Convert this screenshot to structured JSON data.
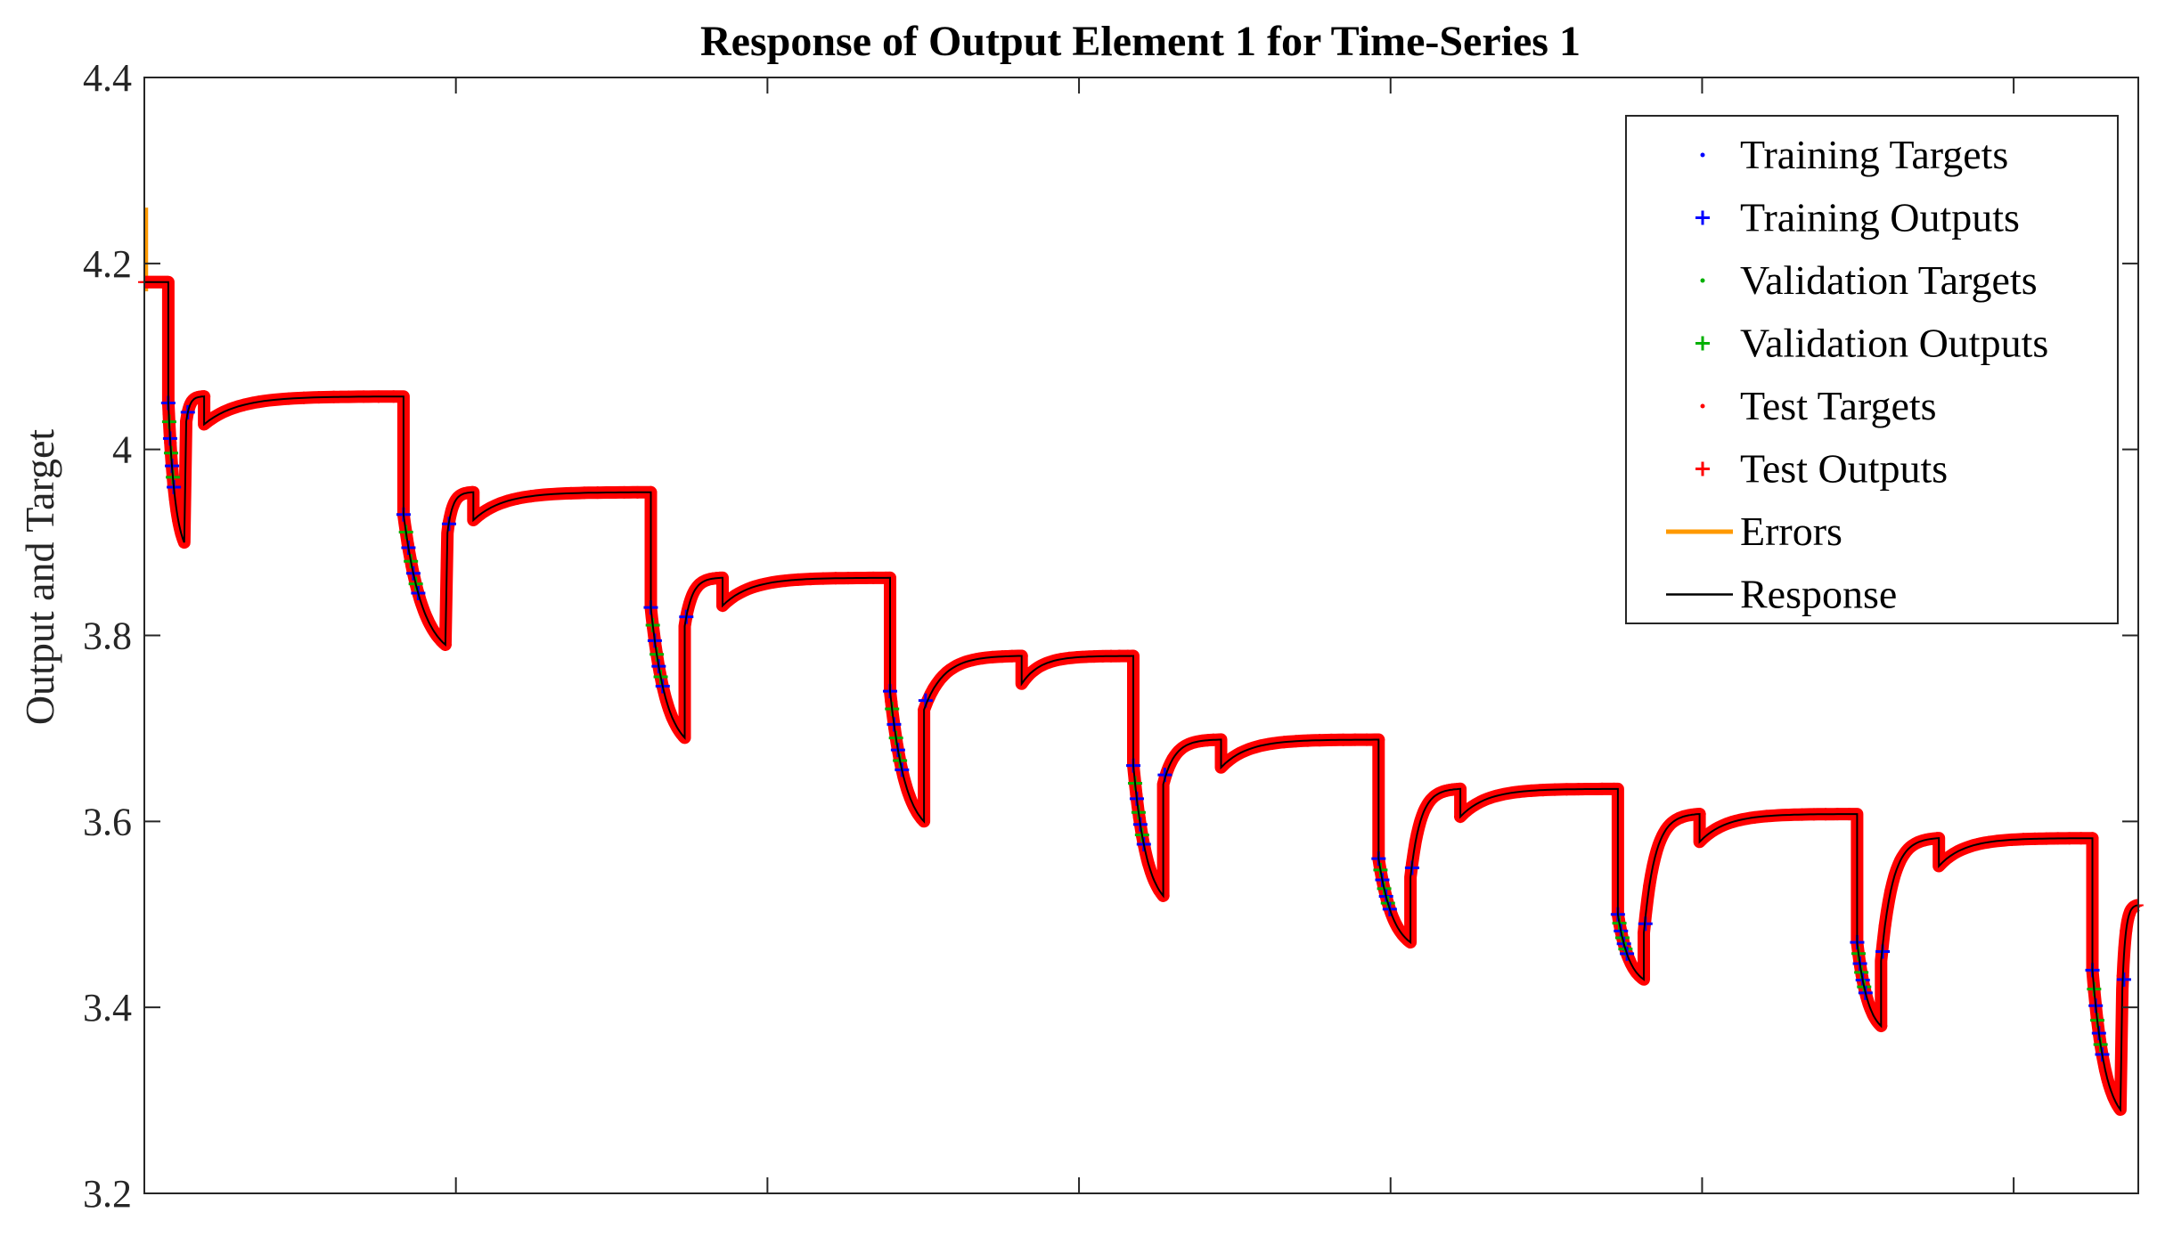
{
  "chart_data": {
    "type": "line",
    "title": "Response of Output Element 1 for Time-Series 1",
    "xlabel": "",
    "ylabel": "Output and Target",
    "ylim": [
      3.2,
      4.4
    ],
    "xlim": [
      0,
      1000
    ],
    "yticks": [
      "3.2",
      "3.4",
      "3.6",
      "3.8",
      "4",
      "4.2",
      "4.4"
    ],
    "ytick_values": [
      3.2,
      3.4,
      3.6,
      3.8,
      4.0,
      4.2,
      4.4
    ],
    "xticks_present": true,
    "grid": false,
    "legend_position": "top-right",
    "legend": [
      {
        "label": "Training Targets",
        "marker": "dot",
        "color": "#0000ff"
      },
      {
        "label": "Training Outputs",
        "marker": "plus",
        "color": "#0000ff"
      },
      {
        "label": "Validation Targets",
        "marker": "dot",
        "color": "#00b000"
      },
      {
        "label": "Validation Outputs",
        "marker": "plus",
        "color": "#00b000"
      },
      {
        "label": "Test Targets",
        "marker": "dot",
        "color": "#ff0000"
      },
      {
        "label": "Test Outputs",
        "marker": "plus",
        "color": "#ff0000"
      },
      {
        "label": "Errors",
        "marker": "line",
        "color": "#ff9900"
      },
      {
        "label": "Response",
        "marker": "line",
        "color": "#000000"
      }
    ],
    "cycles": [
      {
        "plateau_start": 0,
        "plateau_end": 12,
        "plateau_level": 4.18,
        "drop_start": 12,
        "drop_end": 20,
        "drop_top": 4.05,
        "drop_bottom": 3.9,
        "recover_start": 21,
        "recover_end": 30
      },
      {
        "plateau_start": 30,
        "plateau_end": 130,
        "plateau_level": 4.057,
        "drop_start": 130,
        "drop_end": 151,
        "drop_top": 3.93,
        "drop_bottom": 3.79,
        "recover_start": 152,
        "recover_end": 165
      },
      {
        "plateau_start": 165,
        "plateau_end": 254,
        "plateau_level": 3.954,
        "drop_start": 254,
        "drop_end": 271,
        "drop_top": 3.83,
        "drop_bottom": 3.69,
        "recover_start": 271,
        "recover_end": 290
      },
      {
        "plateau_start": 290,
        "plateau_end": 374,
        "plateau_level": 3.862,
        "drop_start": 374,
        "drop_end": 391,
        "drop_top": 3.74,
        "drop_bottom": 3.6,
        "recover_start": 391,
        "recover_end": 440
      },
      {
        "plateau_start": 440,
        "plateau_end": 496,
        "plateau_level": 3.778,
        "drop_start": 496,
        "drop_end": 511,
        "drop_top": 3.66,
        "drop_bottom": 3.52,
        "recover_start": 511,
        "recover_end": 540
      },
      {
        "plateau_start": 540,
        "plateau_end": 619,
        "plateau_level": 3.688,
        "drop_start": 619,
        "drop_end": 635,
        "drop_top": 3.56,
        "drop_bottom": 3.47,
        "recover_start": 635,
        "recover_end": 660
      },
      {
        "plateau_start": 660,
        "plateau_end": 739,
        "plateau_level": 3.635,
        "drop_start": 739,
        "drop_end": 752,
        "drop_top": 3.5,
        "drop_bottom": 3.43,
        "recover_start": 752,
        "recover_end": 780
      },
      {
        "plateau_start": 780,
        "plateau_end": 859,
        "plateau_level": 3.608,
        "drop_start": 859,
        "drop_end": 871,
        "drop_top": 3.47,
        "drop_bottom": 3.38,
        "recover_start": 871,
        "recover_end": 900
      },
      {
        "plateau_start": 900,
        "plateau_end": 977,
        "plateau_level": 3.582,
        "drop_start": 977,
        "drop_end": 991,
        "drop_top": 3.44,
        "drop_bottom": 3.29,
        "recover_start": 992,
        "recover_end": 1000,
        "recover_final": 3.51
      }
    ]
  }
}
